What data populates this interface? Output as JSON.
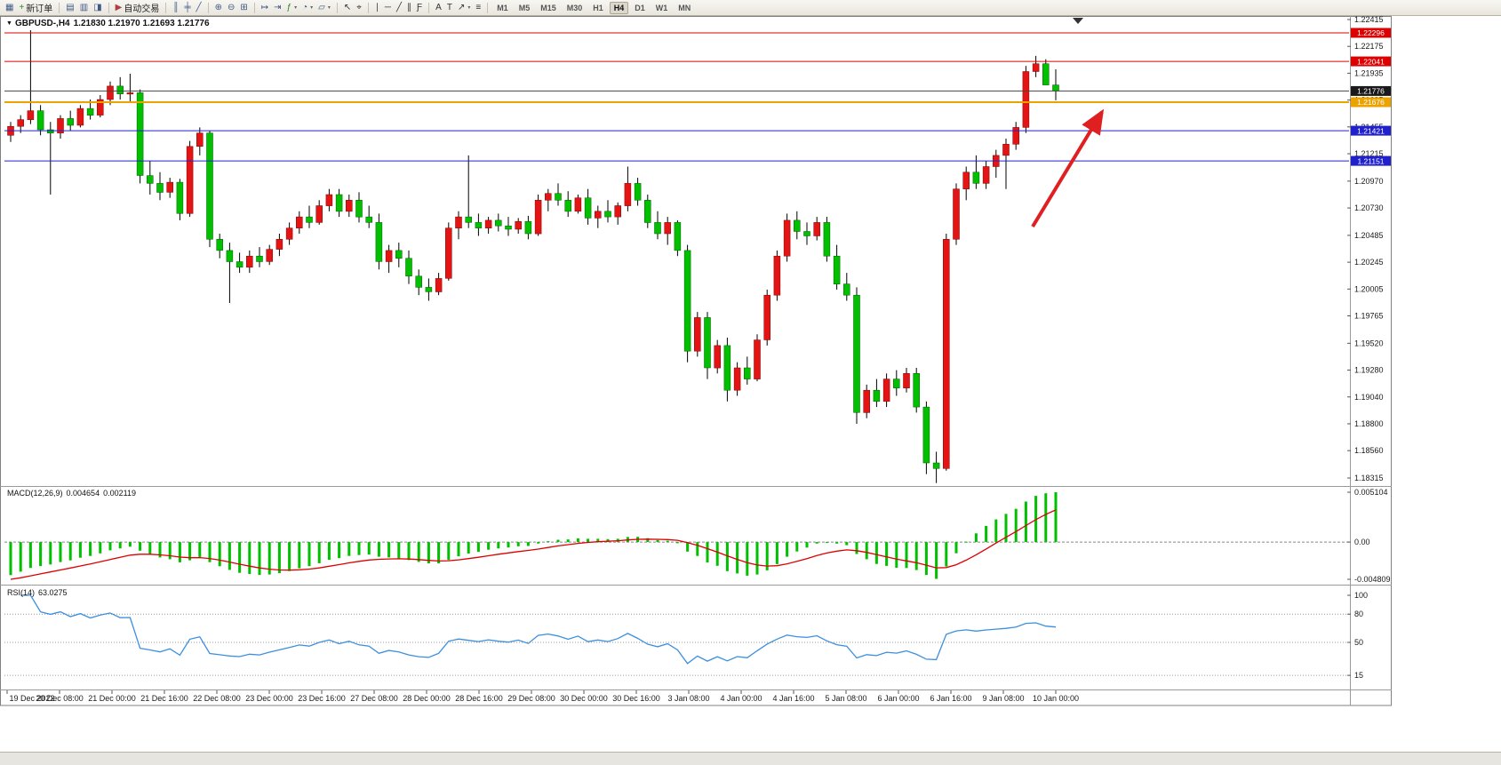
{
  "toolbar": {
    "timeframes": [
      "M1",
      "M5",
      "M15",
      "M30",
      "H1",
      "H4",
      "D1",
      "W1",
      "MN"
    ],
    "active_timeframe": "H4",
    "notification_count": "1",
    "icon_groups": [
      {
        "items": [
          {
            "name": "new-chart-icon",
            "glyph": "▦",
            "color": "#3f5a86"
          },
          {
            "name": "new-order-button",
            "glyph": "+",
            "color": "#2e8b2e",
            "label": "新订单"
          }
        ]
      },
      {
        "items": [
          {
            "name": "charts-profile-icon",
            "glyph": "▤",
            "color": "#3f5a86"
          },
          {
            "name": "market-watch-icon",
            "glyph": "▥",
            "color": "#3f5a86"
          },
          {
            "name": "navigator-icon",
            "glyph": "◨",
            "color": "#3f5a86"
          }
        ]
      },
      {
        "items": [
          {
            "name": "autotrading-button",
            "glyph": "▶",
            "color": "#b04040",
            "label": "自动交易"
          }
        ]
      },
      {
        "items": [
          {
            "name": "bar-chart-icon",
            "glyph": "║",
            "color": "#3f5a86"
          },
          {
            "name": "candlestick-chart-icon",
            "glyph": "╪",
            "color": "#3f5a86"
          },
          {
            "name": "line-chart-icon",
            "glyph": "╱",
            "color": "#3f5a86"
          }
        ]
      },
      {
        "items": [
          {
            "name": "zoom-in-icon",
            "glyph": "⊕",
            "color": "#3f5a86"
          },
          {
            "name": "zoom-out-icon",
            "glyph": "⊖",
            "color": "#3f5a86"
          },
          {
            "name": "tile-windows-icon",
            "glyph": "⊞",
            "color": "#3f5a86"
          }
        ]
      },
      {
        "items": [
          {
            "name": "auto-scroll-icon",
            "glyph": "↦",
            "color": "#3f5a86"
          },
          {
            "name": "chart-shift-icon",
            "glyph": "⇥",
            "color": "#3f5a86"
          },
          {
            "name": "indicators-add-icon",
            "glyph": "ƒ",
            "color": "#2e7d32",
            "dropdown": true
          },
          {
            "name": "periods-icon",
            "glyph": "◔",
            "color": "#3f5a86",
            "dropdown": true
          },
          {
            "name": "templates-icon",
            "glyph": "▱",
            "color": "#3f5a86",
            "dropdown": true
          }
        ]
      },
      {
        "items": [
          {
            "name": "cursor-icon",
            "glyph": "↖",
            "color": "#333333"
          },
          {
            "name": "crosshair-icon",
            "glyph": "⌖",
            "color": "#333333"
          }
        ]
      },
      {
        "items": [
          {
            "name": "vertical-line-icon",
            "glyph": "∣",
            "color": "#333333"
          },
          {
            "name": "horizontal-line-icon",
            "glyph": "─",
            "color": "#333333"
          },
          {
            "name": "trendline-icon",
            "glyph": "╱",
            "color": "#333333"
          },
          {
            "name": "equidistant-channel-icon",
            "glyph": "∥",
            "color": "#333333"
          },
          {
            "name": "fibonacci-icon",
            "glyph": "Ƒ",
            "color": "#333333"
          }
        ]
      },
      {
        "items": [
          {
            "name": "text-icon",
            "glyph": "A",
            "color": "#333333"
          },
          {
            "name": "text-label-icon",
            "glyph": "T",
            "color": "#333333"
          },
          {
            "name": "arrows-icon",
            "glyph": "↗",
            "color": "#333333",
            "dropdown": true
          },
          {
            "name": "objects-list-icon",
            "glyph": "≡",
            "color": "#333333"
          }
        ]
      }
    ]
  },
  "chart": {
    "title": {
      "collapse_icon": "▼",
      "symbol_period": "GBPUSD-,H4",
      "ohlc": "1.21830 1.21970 1.21693 1.21776"
    },
    "price_axis_labels": [
      "1.22415",
      "1.22175",
      "1.21935",
      "1.21695",
      "1.21455",
      "1.21215",
      "1.20970",
      "1.20730",
      "1.20485",
      "1.20245",
      "1.20005",
      "1.19765",
      "1.19520",
      "1.19280",
      "1.19040",
      "1.18800",
      "1.18560",
      "1.18315"
    ],
    "time_axis_labels": [
      "19 Dec 2022",
      "20 Dec 08:00",
      "21 Dec 00:00",
      "21 Dec 16:00",
      "22 Dec 08:00",
      "23 Dec 00:00",
      "23 Dec 16:00",
      "27 Dec 08:00",
      "28 Dec 00:00",
      "28 Dec 16:00",
      "29 Dec 08:00",
      "30 Dec 00:00",
      "30 Dec 16:00",
      "3 Jan 08:00",
      "4 Jan 00:00",
      "4 Jan 16:00",
      "5 Jan 08:00",
      "6 Jan 00:00",
      "6 Jan 16:00",
      "9 Jan 08:00",
      "10 Jan 00:00"
    ],
    "hlines": [
      {
        "name": "resistance-line-upper",
        "price": 1.22296,
        "label": "1.22296",
        "color": "#dd0000",
        "thickness": 1
      },
      {
        "name": "resistance-line-lower",
        "price": 1.22041,
        "label": "1.22041",
        "color": "#dd0000",
        "thickness": 1
      },
      {
        "name": "bid-price-line",
        "price": 1.21776,
        "label": "1.21776",
        "color": "#444444",
        "tag_color": "#1a1a1a",
        "thickness": 1
      },
      {
        "name": "pivot-line-orange",
        "price": 1.21676,
        "label": "1.21676",
        "color": "#eca300",
        "thickness": 2
      },
      {
        "name": "support-line-upper",
        "price": 1.21421,
        "label": "1.21421",
        "color": "#2121cc",
        "thickness": 1
      },
      {
        "name": "support-line-lower",
        "price": 1.21151,
        "label": "1.21151",
        "color": "#2121cc",
        "thickness": 1
      }
    ],
    "arrow": {
      "color": "#e02020"
    }
  },
  "chart_data": {
    "type": "candlestick",
    "symbol": "GBPUSD-",
    "period": "H4",
    "up_color": "#e51414",
    "down_color": "#00c000",
    "wick_color": "#000000",
    "price_top": 1.22415,
    "price_bottom": 1.18315,
    "ohlc": [
      [
        1.2138,
        1.215,
        1.2132,
        1.2146
      ],
      [
        1.2146,
        1.2156,
        1.214,
        1.2152
      ],
      [
        1.2152,
        1.2232,
        1.2148,
        1.216
      ],
      [
        1.216,
        1.2165,
        1.2138,
        1.2143
      ],
      [
        1.2143,
        1.215,
        1.2085,
        1.214
      ],
      [
        1.214,
        1.2156,
        1.2135,
        1.2153
      ],
      [
        1.2153,
        1.216,
        1.2142,
        1.2147
      ],
      [
        1.2147,
        1.2165,
        1.2145,
        1.2162
      ],
      [
        1.2162,
        1.217,
        1.2152,
        1.2156
      ],
      [
        1.2156,
        1.2174,
        1.2154,
        1.217
      ],
      [
        1.217,
        1.2186,
        1.2165,
        1.2182
      ],
      [
        1.2182,
        1.219,
        1.217,
        1.2175
      ],
      [
        1.2175,
        1.2193,
        1.2168,
        1.2176
      ],
      [
        1.2176,
        1.2179,
        1.2095,
        1.2102
      ],
      [
        1.2102,
        1.2115,
        1.2085,
        1.2095
      ],
      [
        1.2095,
        1.2105,
        1.208,
        1.2087
      ],
      [
        1.2087,
        1.21,
        1.2082,
        1.2096
      ],
      [
        1.2096,
        1.2099,
        1.2062,
        1.2068
      ],
      [
        1.2068,
        1.2133,
        1.2065,
        1.2128
      ],
      [
        1.2128,
        1.2145,
        1.212,
        1.214
      ],
      [
        1.214,
        1.2142,
        1.2038,
        1.2045
      ],
      [
        1.2045,
        1.205,
        1.2028,
        1.2035
      ],
      [
        1.2035,
        1.2042,
        1.1988,
        1.2025
      ],
      [
        1.2025,
        1.2033,
        1.2015,
        1.202
      ],
      [
        1.202,
        1.2035,
        1.2015,
        1.203
      ],
      [
        1.203,
        1.2038,
        1.202,
        1.2025
      ],
      [
        1.2025,
        1.204,
        1.2022,
        1.2036
      ],
      [
        1.2036,
        1.205,
        1.203,
        1.2045
      ],
      [
        1.2045,
        1.206,
        1.204,
        1.2055
      ],
      [
        1.2055,
        1.207,
        1.205,
        1.2065
      ],
      [
        1.2065,
        1.2075,
        1.2055,
        1.206
      ],
      [
        1.206,
        1.208,
        1.2058,
        1.2075
      ],
      [
        1.2075,
        1.209,
        1.207,
        1.2085
      ],
      [
        1.2085,
        1.209,
        1.2065,
        1.207
      ],
      [
        1.207,
        1.2085,
        1.2065,
        1.208
      ],
      [
        1.208,
        1.2087,
        1.206,
        1.2065
      ],
      [
        1.2065,
        1.2075,
        1.2055,
        1.206
      ],
      [
        1.206,
        1.2068,
        1.2018,
        1.2025
      ],
      [
        1.2025,
        1.204,
        1.2015,
        1.2035
      ],
      [
        1.2035,
        1.2042,
        1.202,
        1.2028
      ],
      [
        1.2028,
        1.2035,
        1.2005,
        1.2012
      ],
      [
        1.2012,
        1.2018,
        1.1995,
        1.2002
      ],
      [
        1.2002,
        1.201,
        1.199,
        1.1998
      ],
      [
        1.1998,
        1.2015,
        1.1995,
        1.201
      ],
      [
        1.201,
        1.206,
        1.2008,
        1.2055
      ],
      [
        1.2055,
        1.207,
        1.2045,
        1.2065
      ],
      [
        1.2065,
        1.212,
        1.2055,
        1.206
      ],
      [
        1.206,
        1.2068,
        1.2048,
        1.2055
      ],
      [
        1.2055,
        1.2065,
        1.205,
        1.2062
      ],
      [
        1.2062,
        1.2068,
        1.2052,
        1.2057
      ],
      [
        1.2057,
        1.2065,
        1.2048,
        1.2054
      ],
      [
        1.2054,
        1.2064,
        1.205,
        1.2061
      ],
      [
        1.2061,
        1.2066,
        1.2045,
        1.205
      ],
      [
        1.205,
        1.2085,
        1.2048,
        1.208
      ],
      [
        1.208,
        1.209,
        1.207,
        1.2086
      ],
      [
        1.2086,
        1.2095,
        1.2075,
        1.208
      ],
      [
        1.208,
        1.2088,
        1.2065,
        1.207
      ],
      [
        1.207,
        1.2085,
        1.2068,
        1.2082
      ],
      [
        1.2082,
        1.209,
        1.2058,
        1.2064
      ],
      [
        1.2064,
        1.2075,
        1.2055,
        1.207
      ],
      [
        1.207,
        1.208,
        1.206,
        1.2065
      ],
      [
        1.2065,
        1.2078,
        1.2058,
        1.2075
      ],
      [
        1.2075,
        1.211,
        1.207,
        1.2095
      ],
      [
        1.2095,
        1.21,
        1.2075,
        1.208
      ],
      [
        1.208,
        1.2085,
        1.2055,
        1.206
      ],
      [
        1.206,
        1.207,
        1.2045,
        1.205
      ],
      [
        1.205,
        1.2065,
        1.204,
        1.206
      ],
      [
        1.206,
        1.2062,
        1.203,
        1.2035
      ],
      [
        1.2035,
        1.204,
        1.1935,
        1.1945
      ],
      [
        1.1945,
        1.198,
        1.194,
        1.1975
      ],
      [
        1.1975,
        1.198,
        1.192,
        1.193
      ],
      [
        1.193,
        1.1955,
        1.1925,
        1.195
      ],
      [
        1.195,
        1.1957,
        1.19,
        1.191
      ],
      [
        1.191,
        1.1935,
        1.1905,
        1.193
      ],
      [
        1.193,
        1.194,
        1.1915,
        1.192
      ],
      [
        1.192,
        1.196,
        1.1918,
        1.1955
      ],
      [
        1.1955,
        1.2,
        1.195,
        1.1995
      ],
      [
        1.1995,
        1.2035,
        1.199,
        1.203
      ],
      [
        1.203,
        1.2068,
        1.2025,
        1.2062
      ],
      [
        1.2062,
        1.207,
        1.2045,
        1.2052
      ],
      [
        1.2052,
        1.206,
        1.204,
        1.2048
      ],
      [
        1.2048,
        1.2065,
        1.2044,
        1.206
      ],
      [
        1.206,
        1.2065,
        1.2025,
        1.203
      ],
      [
        1.203,
        1.204,
        1.2,
        1.2005
      ],
      [
        1.2005,
        1.2015,
        1.199,
        1.1995
      ],
      [
        1.1995,
        1.2002,
        1.188,
        1.189
      ],
      [
        1.189,
        1.1915,
        1.1885,
        1.191
      ],
      [
        1.191,
        1.192,
        1.1895,
        1.19
      ],
      [
        1.19,
        1.1925,
        1.1895,
        1.192
      ],
      [
        1.192,
        1.1928,
        1.1905,
        1.1912
      ],
      [
        1.1912,
        1.193,
        1.1908,
        1.1925
      ],
      [
        1.1925,
        1.193,
        1.189,
        1.1895
      ],
      [
        1.1895,
        1.19,
        1.1835,
        1.1845
      ],
      [
        1.1845,
        1.1855,
        1.1827,
        1.184
      ],
      [
        1.184,
        1.205,
        1.1838,
        1.2045
      ],
      [
        1.2045,
        1.2095,
        1.204,
        1.209
      ],
      [
        1.209,
        1.211,
        1.208,
        1.2105
      ],
      [
        1.2105,
        1.212,
        1.209,
        1.2095
      ],
      [
        1.2095,
        1.2115,
        1.209,
        1.211
      ],
      [
        1.211,
        1.2125,
        1.21,
        1.212
      ],
      [
        1.212,
        1.2135,
        1.209,
        1.213
      ],
      [
        1.213,
        1.215,
        1.2125,
        1.2145
      ],
      [
        1.2145,
        1.22,
        1.214,
        1.2195
      ],
      [
        1.2195,
        1.2209,
        1.219,
        1.2202
      ],
      [
        1.2202,
        1.2206,
        1.2183,
        1.2183
      ],
      [
        1.2183,
        1.2197,
        1.21693,
        1.21776
      ]
    ]
  },
  "macd": {
    "label": "MACD(12,26,9)",
    "value_main": "0.004654",
    "value_signal": "0.002119",
    "axis_labels": [
      "0.005104",
      "0.00",
      "-0.004809"
    ],
    "histogram_color": "#00c000",
    "signal_color": "#dd0000"
  },
  "rsi": {
    "label": "RSI(14)",
    "value": "63.0275",
    "axis_labels": [
      "100",
      "80",
      "50",
      "15"
    ],
    "levels": [
      80,
      50,
      15
    ],
    "line_color": "#3b8fe0"
  }
}
